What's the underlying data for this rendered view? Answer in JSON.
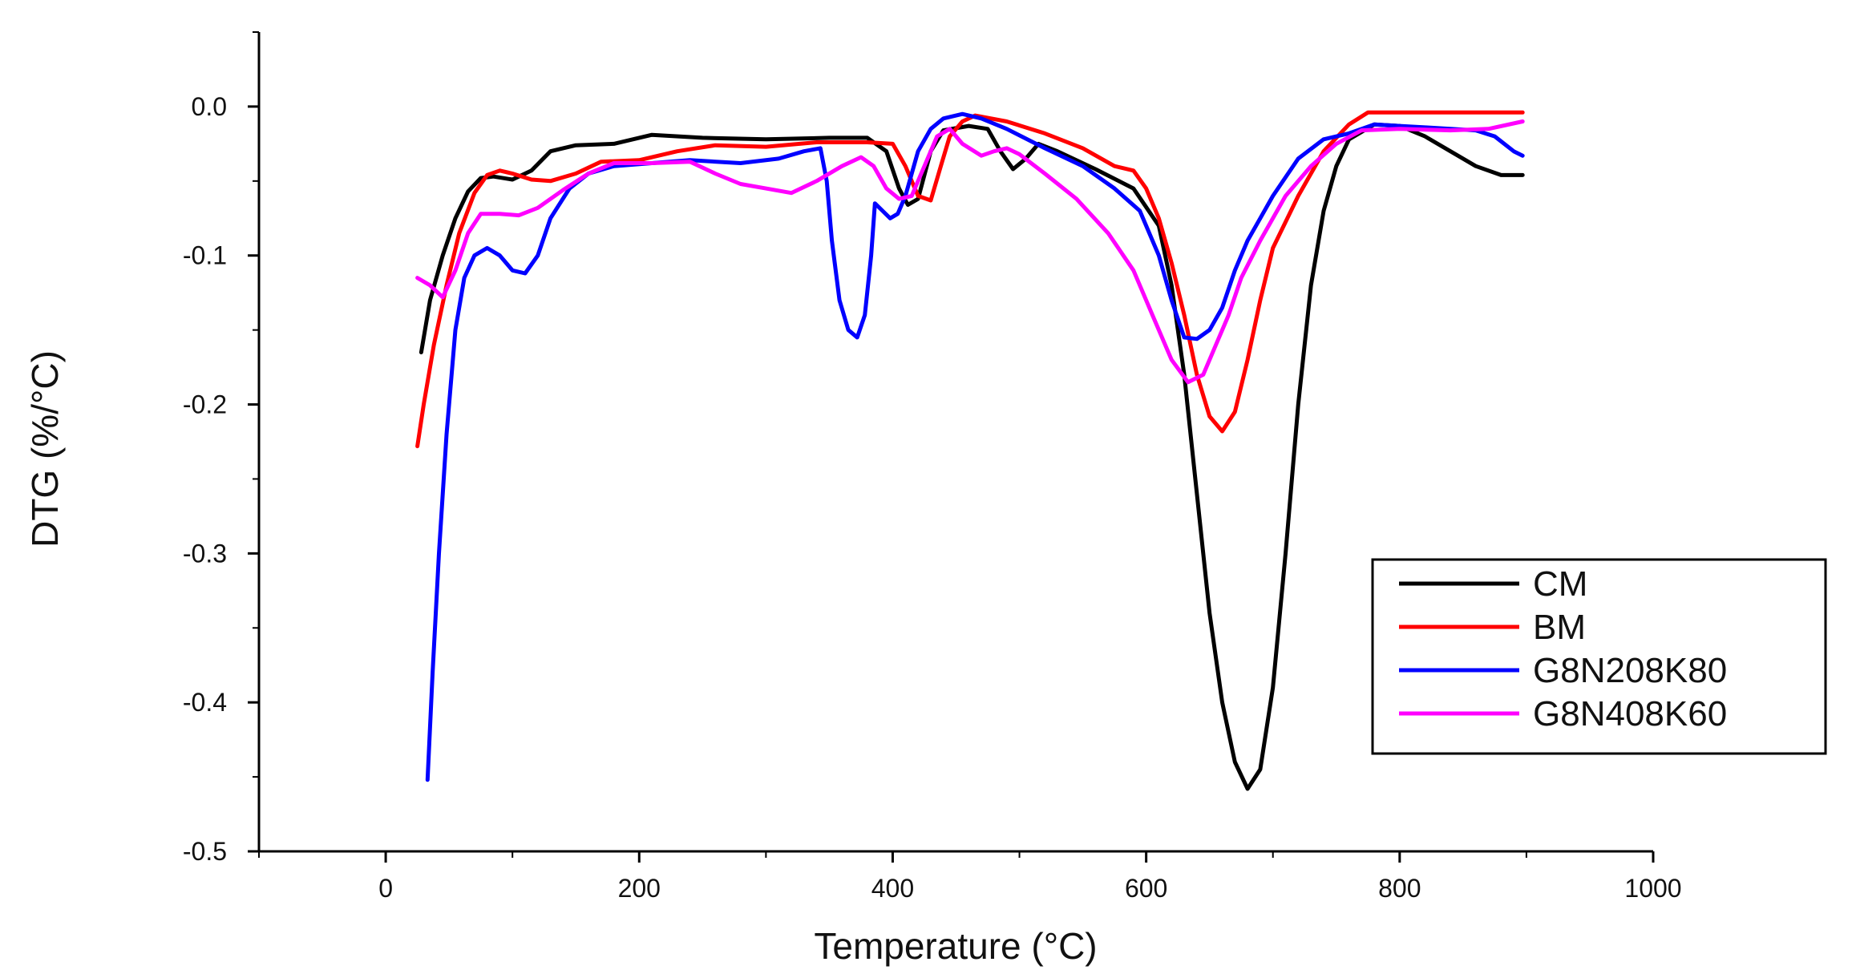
{
  "chart_data": {
    "type": "line",
    "title": "",
    "xlabel": "Temperature (°C)",
    "ylabel": "DTG (%/°C)",
    "xlim": [
      -100,
      1000
    ],
    "ylim": [
      -0.5,
      0.05
    ],
    "xticks": [
      0,
      200,
      400,
      600,
      800,
      1000
    ],
    "xtick_labels": [
      "0",
      "200",
      "400",
      "600",
      "800",
      "1000"
    ],
    "yticks": [
      0.0,
      -0.1,
      -0.2,
      -0.3,
      -0.4,
      -0.5
    ],
    "ytick_labels": [
      "0.0",
      "-0.1",
      "-0.2",
      "-0.3",
      "-0.4",
      "-0.5"
    ],
    "grid": false,
    "legend_position": "lower-right",
    "series": [
      {
        "name": "CM",
        "color": "#000000",
        "points": [
          [
            28,
            -0.165
          ],
          [
            35,
            -0.13
          ],
          [
            45,
            -0.1
          ],
          [
            55,
            -0.075
          ],
          [
            65,
            -0.057
          ],
          [
            75,
            -0.048
          ],
          [
            85,
            -0.047
          ],
          [
            100,
            -0.049
          ],
          [
            115,
            -0.043
          ],
          [
            130,
            -0.03
          ],
          [
            150,
            -0.026
          ],
          [
            180,
            -0.025
          ],
          [
            210,
            -0.019
          ],
          [
            250,
            -0.021
          ],
          [
            300,
            -0.022
          ],
          [
            350,
            -0.021
          ],
          [
            380,
            -0.021
          ],
          [
            395,
            -0.03
          ],
          [
            405,
            -0.055
          ],
          [
            412,
            -0.066
          ],
          [
            420,
            -0.062
          ],
          [
            430,
            -0.03
          ],
          [
            440,
            -0.016
          ],
          [
            460,
            -0.013
          ],
          [
            475,
            -0.015
          ],
          [
            485,
            -0.03
          ],
          [
            495,
            -0.042
          ],
          [
            505,
            -0.035
          ],
          [
            515,
            -0.025
          ],
          [
            530,
            -0.03
          ],
          [
            560,
            -0.042
          ],
          [
            590,
            -0.055
          ],
          [
            610,
            -0.08
          ],
          [
            620,
            -0.12
          ],
          [
            630,
            -0.18
          ],
          [
            640,
            -0.26
          ],
          [
            650,
            -0.34
          ],
          [
            660,
            -0.4
          ],
          [
            670,
            -0.44
          ],
          [
            680,
            -0.458
          ],
          [
            690,
            -0.445
          ],
          [
            700,
            -0.39
          ],
          [
            710,
            -0.3
          ],
          [
            720,
            -0.2
          ],
          [
            730,
            -0.12
          ],
          [
            740,
            -0.07
          ],
          [
            750,
            -0.04
          ],
          [
            760,
            -0.022
          ],
          [
            780,
            -0.012
          ],
          [
            800,
            -0.013
          ],
          [
            820,
            -0.02
          ],
          [
            840,
            -0.03
          ],
          [
            860,
            -0.04
          ],
          [
            880,
            -0.046
          ],
          [
            897,
            -0.046
          ]
        ]
      },
      {
        "name": "BM",
        "color": "#ff0000",
        "points": [
          [
            25,
            -0.228
          ],
          [
            30,
            -0.2
          ],
          [
            38,
            -0.16
          ],
          [
            48,
            -0.12
          ],
          [
            58,
            -0.085
          ],
          [
            70,
            -0.058
          ],
          [
            80,
            -0.046
          ],
          [
            90,
            -0.043
          ],
          [
            100,
            -0.045
          ],
          [
            115,
            -0.049
          ],
          [
            130,
            -0.05
          ],
          [
            150,
            -0.045
          ],
          [
            170,
            -0.037
          ],
          [
            200,
            -0.036
          ],
          [
            230,
            -0.03
          ],
          [
            260,
            -0.026
          ],
          [
            300,
            -0.027
          ],
          [
            340,
            -0.024
          ],
          [
            380,
            -0.024
          ],
          [
            400,
            -0.025
          ],
          [
            410,
            -0.04
          ],
          [
            420,
            -0.06
          ],
          [
            430,
            -0.063
          ],
          [
            438,
            -0.04
          ],
          [
            445,
            -0.02
          ],
          [
            455,
            -0.01
          ],
          [
            465,
            -0.006
          ],
          [
            490,
            -0.01
          ],
          [
            520,
            -0.018
          ],
          [
            550,
            -0.028
          ],
          [
            575,
            -0.04
          ],
          [
            590,
            -0.043
          ],
          [
            600,
            -0.055
          ],
          [
            610,
            -0.075
          ],
          [
            620,
            -0.105
          ],
          [
            630,
            -0.14
          ],
          [
            640,
            -0.18
          ],
          [
            650,
            -0.208
          ],
          [
            660,
            -0.218
          ],
          [
            670,
            -0.205
          ],
          [
            680,
            -0.17
          ],
          [
            690,
            -0.13
          ],
          [
            700,
            -0.095
          ],
          [
            720,
            -0.06
          ],
          [
            740,
            -0.03
          ],
          [
            760,
            -0.012
          ],
          [
            775,
            -0.004
          ],
          [
            800,
            -0.004
          ],
          [
            850,
            -0.004
          ],
          [
            897,
            -0.004
          ]
        ]
      },
      {
        "name": "G8N208K80",
        "color": "#0000ff",
        "points": [
          [
            33,
            -0.452
          ],
          [
            37,
            -0.38
          ],
          [
            42,
            -0.3
          ],
          [
            48,
            -0.22
          ],
          [
            55,
            -0.15
          ],
          [
            62,
            -0.115
          ],
          [
            70,
            -0.1
          ],
          [
            80,
            -0.095
          ],
          [
            90,
            -0.1
          ],
          [
            100,
            -0.11
          ],
          [
            110,
            -0.112
          ],
          [
            120,
            -0.1
          ],
          [
            130,
            -0.075
          ],
          [
            145,
            -0.055
          ],
          [
            160,
            -0.045
          ],
          [
            180,
            -0.04
          ],
          [
            210,
            -0.038
          ],
          [
            240,
            -0.036
          ],
          [
            280,
            -0.038
          ],
          [
            310,
            -0.035
          ],
          [
            330,
            -0.03
          ],
          [
            343,
            -0.028
          ],
          [
            348,
            -0.05
          ],
          [
            352,
            -0.09
          ],
          [
            358,
            -0.13
          ],
          [
            365,
            -0.15
          ],
          [
            372,
            -0.155
          ],
          [
            378,
            -0.14
          ],
          [
            383,
            -0.1
          ],
          [
            386,
            -0.065
          ],
          [
            392,
            -0.07
          ],
          [
            398,
            -0.075
          ],
          [
            404,
            -0.072
          ],
          [
            410,
            -0.06
          ],
          [
            420,
            -0.03
          ],
          [
            430,
            -0.015
          ],
          [
            440,
            -0.008
          ],
          [
            455,
            -0.005
          ],
          [
            470,
            -0.008
          ],
          [
            490,
            -0.015
          ],
          [
            520,
            -0.028
          ],
          [
            550,
            -0.04
          ],
          [
            575,
            -0.055
          ],
          [
            595,
            -0.07
          ],
          [
            610,
            -0.1
          ],
          [
            620,
            -0.13
          ],
          [
            630,
            -0.155
          ],
          [
            640,
            -0.156
          ],
          [
            650,
            -0.15
          ],
          [
            660,
            -0.135
          ],
          [
            670,
            -0.11
          ],
          [
            680,
            -0.09
          ],
          [
            690,
            -0.075
          ],
          [
            700,
            -0.06
          ],
          [
            720,
            -0.035
          ],
          [
            740,
            -0.022
          ],
          [
            760,
            -0.018
          ],
          [
            780,
            -0.012
          ],
          [
            800,
            -0.013
          ],
          [
            820,
            -0.014
          ],
          [
            840,
            -0.015
          ],
          [
            860,
            -0.016
          ],
          [
            875,
            -0.02
          ],
          [
            890,
            -0.03
          ],
          [
            897,
            -0.033
          ]
        ]
      },
      {
        "name": "G8N408K60",
        "color": "#ff00ff",
        "points": [
          [
            25,
            -0.115
          ],
          [
            35,
            -0.12
          ],
          [
            45,
            -0.128
          ],
          [
            55,
            -0.11
          ],
          [
            65,
            -0.085
          ],
          [
            75,
            -0.072
          ],
          [
            90,
            -0.072
          ],
          [
            105,
            -0.073
          ],
          [
            120,
            -0.068
          ],
          [
            140,
            -0.056
          ],
          [
            160,
            -0.045
          ],
          [
            180,
            -0.038
          ],
          [
            210,
            -0.038
          ],
          [
            240,
            -0.037
          ],
          [
            260,
            -0.045
          ],
          [
            280,
            -0.052
          ],
          [
            300,
            -0.055
          ],
          [
            320,
            -0.058
          ],
          [
            340,
            -0.05
          ],
          [
            360,
            -0.04
          ],
          [
            375,
            -0.034
          ],
          [
            385,
            -0.04
          ],
          [
            395,
            -0.055
          ],
          [
            405,
            -0.062
          ],
          [
            415,
            -0.06
          ],
          [
            425,
            -0.04
          ],
          [
            435,
            -0.02
          ],
          [
            445,
            -0.015
          ],
          [
            455,
            -0.025
          ],
          [
            470,
            -0.033
          ],
          [
            480,
            -0.03
          ],
          [
            490,
            -0.028
          ],
          [
            500,
            -0.032
          ],
          [
            520,
            -0.045
          ],
          [
            545,
            -0.062
          ],
          [
            570,
            -0.085
          ],
          [
            590,
            -0.11
          ],
          [
            605,
            -0.14
          ],
          [
            620,
            -0.17
          ],
          [
            633,
            -0.185
          ],
          [
            645,
            -0.18
          ],
          [
            655,
            -0.16
          ],
          [
            665,
            -0.14
          ],
          [
            675,
            -0.115
          ],
          [
            690,
            -0.09
          ],
          [
            710,
            -0.06
          ],
          [
            730,
            -0.04
          ],
          [
            750,
            -0.025
          ],
          [
            770,
            -0.016
          ],
          [
            800,
            -0.015
          ],
          [
            840,
            -0.016
          ],
          [
            870,
            -0.015
          ],
          [
            897,
            -0.01
          ]
        ]
      }
    ]
  }
}
